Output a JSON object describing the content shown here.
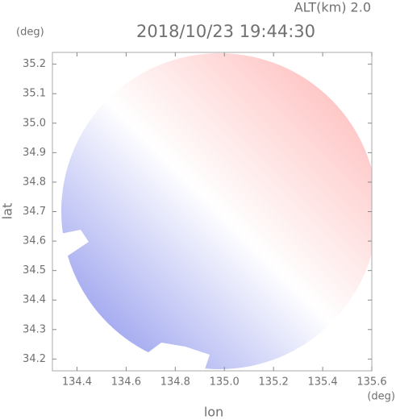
{
  "chart_data": {
    "type": "map",
    "title": "2018/10/23 19:44:30",
    "subtitle": "ALT(km)  2.0",
    "x_label": "lon",
    "y_label": "lat",
    "x_unit": "(deg)",
    "y_unit": "(deg)",
    "xlim": [
      134.3,
      135.6
    ],
    "ylim": [
      34.16,
      35.24
    ],
    "xticks": [
      134.4,
      134.6,
      134.8,
      {
        "value": 135,
        "label": "135.0"
      },
      135.2,
      135.4,
      135.6
    ],
    "yticks": [
      34.2,
      34.3,
      34.4,
      34.5,
      34.6,
      34.7,
      34.8,
      34.9,
      {
        "value": 35,
        "label": "35.0"
      },
      35.1,
      35.2
    ],
    "colors": [
      "#a8aef0",
      "#ffffff",
      "#ffc8c8"
    ]
  }
}
